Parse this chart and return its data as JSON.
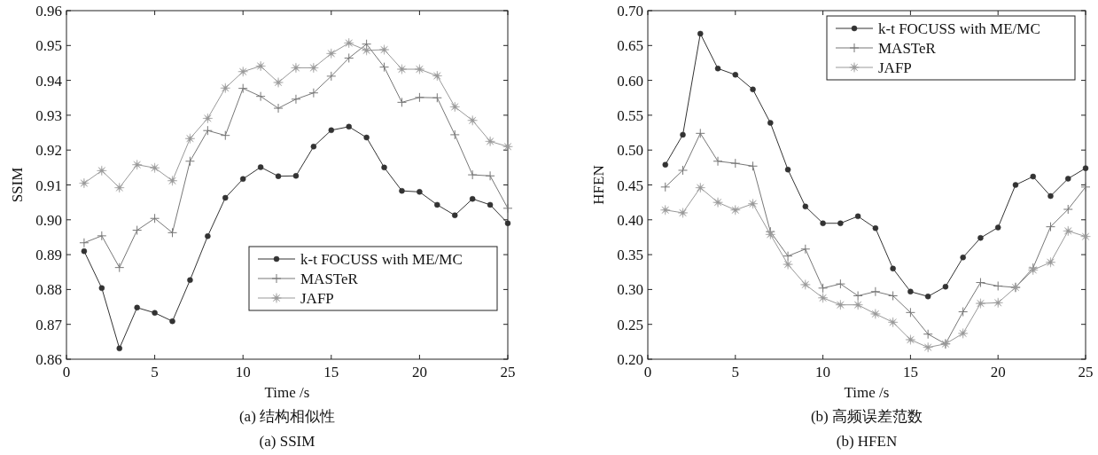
{
  "chart_data": [
    {
      "type": "line",
      "title": "(a) 结构相似性",
      "subtitle": "(a) SSIM",
      "xlabel": "Time /s",
      "ylabel": "SSIM",
      "x": [
        1,
        2,
        3,
        4,
        5,
        6,
        7,
        8,
        9,
        10,
        11,
        12,
        13,
        14,
        15,
        16,
        17,
        18,
        19,
        20,
        21,
        22,
        23,
        24,
        25
      ],
      "xlim": [
        0,
        25
      ],
      "xticks": [
        0,
        5,
        10,
        15,
        20,
        25
      ],
      "ylim": [
        0.86,
        0.96
      ],
      "yticks": [
        0.86,
        0.87,
        0.88,
        0.89,
        {
          "value": 0.9,
          "label": "0.90"
        },
        0.91,
        0.92,
        0.93,
        0.94,
        0.95,
        0.96
      ],
      "legend": "bottom right",
      "grid": false,
      "series": [
        {
          "name": "k-t FOCUSS with ME/MC",
          "color": "#333333",
          "marker": "circle",
          "values": [
            0.891,
            0.8804,
            0.8631,
            0.8748,
            0.8733,
            0.8709,
            0.8827,
            0.8953,
            0.9063,
            0.9117,
            0.9151,
            0.9125,
            0.9126,
            0.921,
            0.9257,
            0.9267,
            0.9236,
            0.915,
            0.9083,
            0.908,
            0.9043,
            0.9013,
            0.906,
            0.9043,
            0.899
          ]
        },
        {
          "name": "MASTeR",
          "color": "#777777",
          "marker": "cross",
          "values": [
            0.8934,
            0.8954,
            0.8863,
            0.897,
            0.9004,
            0.8963,
            0.9168,
            0.9256,
            0.9242,
            0.9377,
            0.9354,
            0.932,
            0.9346,
            0.9364,
            0.9412,
            0.9464,
            0.9504,
            0.9438,
            0.9337,
            0.9351,
            0.935,
            0.9244,
            0.9129,
            0.9126,
            0.9033
          ]
        },
        {
          "name": "JAFP",
          "color": "#999999",
          "marker": "star",
          "values": [
            0.9105,
            0.9141,
            0.9092,
            0.9158,
            0.9149,
            0.9112,
            0.9233,
            0.9291,
            0.9378,
            0.9425,
            0.9441,
            0.9394,
            0.9436,
            0.9436,
            0.9477,
            0.9507,
            0.9486,
            0.9488,
            0.9432,
            0.9432,
            0.9413,
            0.9324,
            0.9285,
            0.9225,
            0.921
          ]
        }
      ]
    },
    {
      "type": "line",
      "title": "(b) 高频误差范数",
      "subtitle": "(b) HFEN",
      "xlabel": "Time /s",
      "ylabel": "HFEN",
      "x": [
        1,
        2,
        3,
        4,
        5,
        6,
        7,
        8,
        9,
        10,
        11,
        12,
        13,
        14,
        15,
        16,
        17,
        18,
        19,
        20,
        21,
        22,
        23,
        24,
        25
      ],
      "xlim": [
        0,
        25
      ],
      "xticks": [
        0,
        5,
        10,
        15,
        20,
        25
      ],
      "ylim": [
        0.2,
        0.7
      ],
      "yticks": [
        {
          "value": 0.2,
          "label": "0.20"
        },
        0.25,
        {
          "value": 0.3,
          "label": "0.30"
        },
        0.35,
        {
          "value": 0.4,
          "label": "0.40"
        },
        0.45,
        {
          "value": 0.5,
          "label": "0.50"
        },
        0.55,
        {
          "value": 0.6,
          "label": "0.60"
        },
        0.65,
        {
          "value": 0.7,
          "label": "0.70"
        }
      ],
      "legend": "top right",
      "grid": false,
      "series": [
        {
          "name": "k-t FOCUSS with ME/MC",
          "color": "#333333",
          "marker": "circle",
          "values": [
            0.479,
            0.522,
            0.667,
            0.617,
            0.608,
            0.587,
            0.539,
            0.472,
            0.419,
            0.395,
            0.395,
            0.405,
            0.388,
            0.33,
            0.297,
            0.29,
            0.304,
            0.346,
            0.374,
            0.389,
            0.45,
            0.462,
            0.434,
            0.459,
            0.474
          ]
        },
        {
          "name": "MASTeR",
          "color": "#777777",
          "marker": "cross",
          "values": [
            0.447,
            0.471,
            0.524,
            0.484,
            0.481,
            0.477,
            0.383,
            0.348,
            0.358,
            0.302,
            0.308,
            0.291,
            0.297,
            0.291,
            0.267,
            0.236,
            0.222,
            0.268,
            0.31,
            0.305,
            0.303,
            0.331,
            0.39,
            0.415,
            0.447
          ]
        },
        {
          "name": "JAFP",
          "color": "#999999",
          "marker": "star",
          "values": [
            0.414,
            0.41,
            0.446,
            0.425,
            0.414,
            0.423,
            0.379,
            0.336,
            0.307,
            0.288,
            0.278,
            0.278,
            0.265,
            0.253,
            0.228,
            0.217,
            0.222,
            0.237,
            0.28,
            0.281,
            0.303,
            0.328,
            0.339,
            0.384,
            0.376
          ]
        }
      ]
    }
  ]
}
